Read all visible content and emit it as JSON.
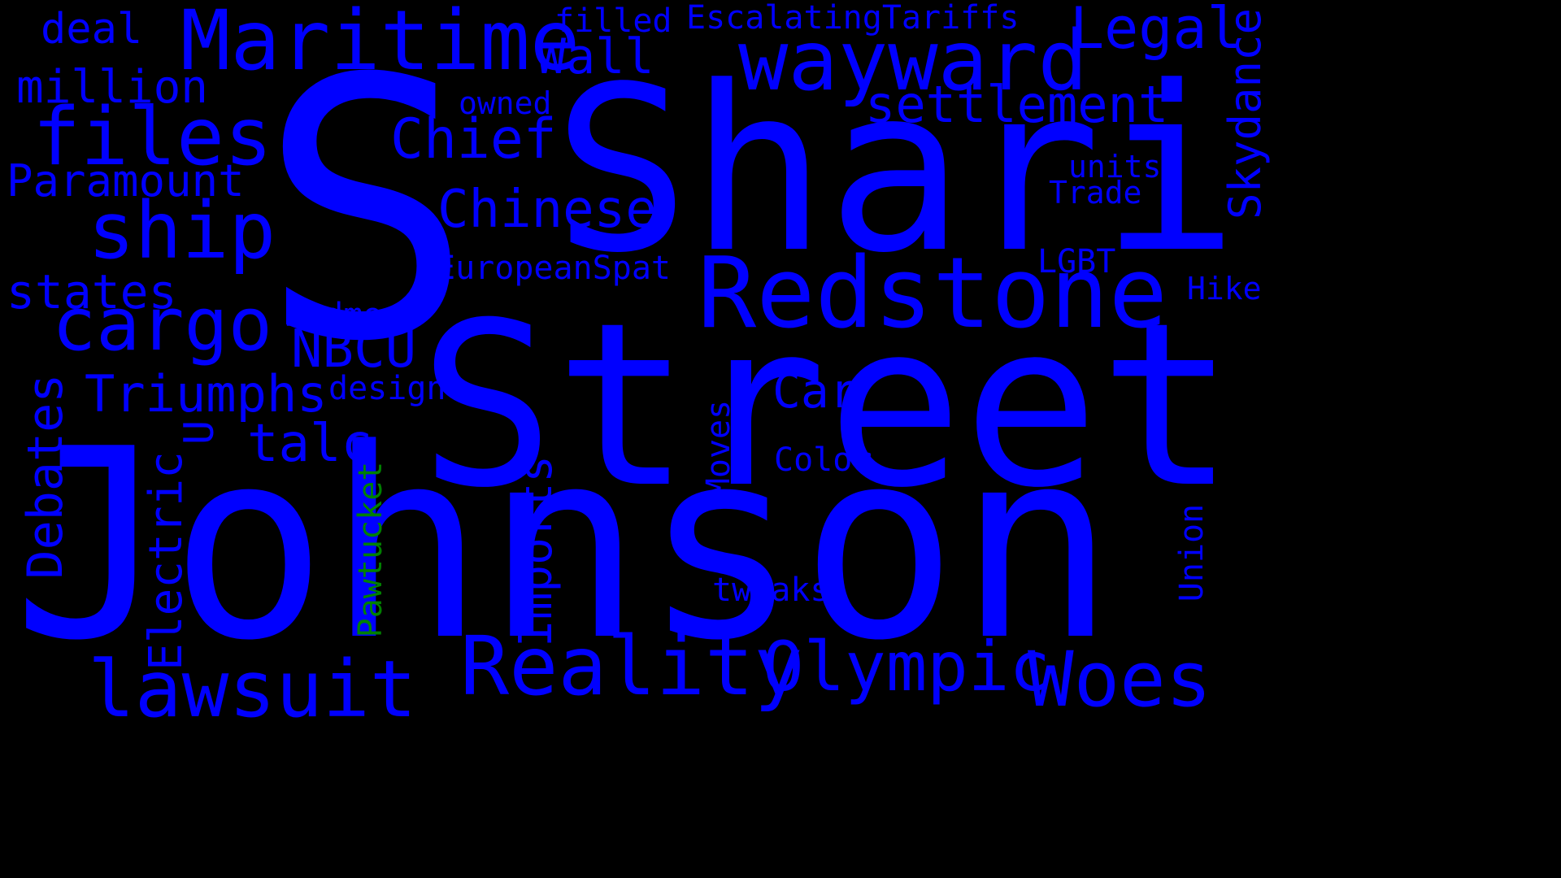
{
  "colors": {
    "background": "#000000",
    "primary": "#0000ff",
    "accent": "#008000"
  },
  "words": {
    "s": "S",
    "shari": "Shari",
    "street": "Street",
    "johnson": "Johnson",
    "redstone": "Redstone",
    "maritime": "Maritime",
    "wayward": "wayward",
    "files": "files",
    "ship": "ship",
    "cargo": "cargo",
    "reality": "Reality",
    "olympic": "Olympic",
    "woes": "Woes",
    "lawsuit": "lawsuit",
    "legal": "Legal",
    "settlement": "settlement",
    "chief": "Chief",
    "chinese": "Chinese",
    "paramount": "Paramount",
    "million": "million",
    "deal": "deal",
    "states": "states",
    "triumphs": "Triumphs",
    "nbcu": "NBCU",
    "talc": "talc",
    "car": "Car",
    "wall": "Wall",
    "filled": "filled",
    "escalating_tariffs": "EscalatingTariffs",
    "owned": "owned",
    "units": "units",
    "trade": "Trade",
    "european_spat": "EuropeanSpat",
    "lgbt": "LGBT",
    "hike": "Hike",
    "redmond": "Redmond",
    "design": "design",
    "color": "Color",
    "tweaks": "tweaks",
    "skydance": "Skydance",
    "debates": "Debates",
    "electric": "Electric",
    "u": "U",
    "imports": "Imports",
    "moves": "Moves",
    "union": "Union",
    "pawtucket": "Pawtucket"
  }
}
